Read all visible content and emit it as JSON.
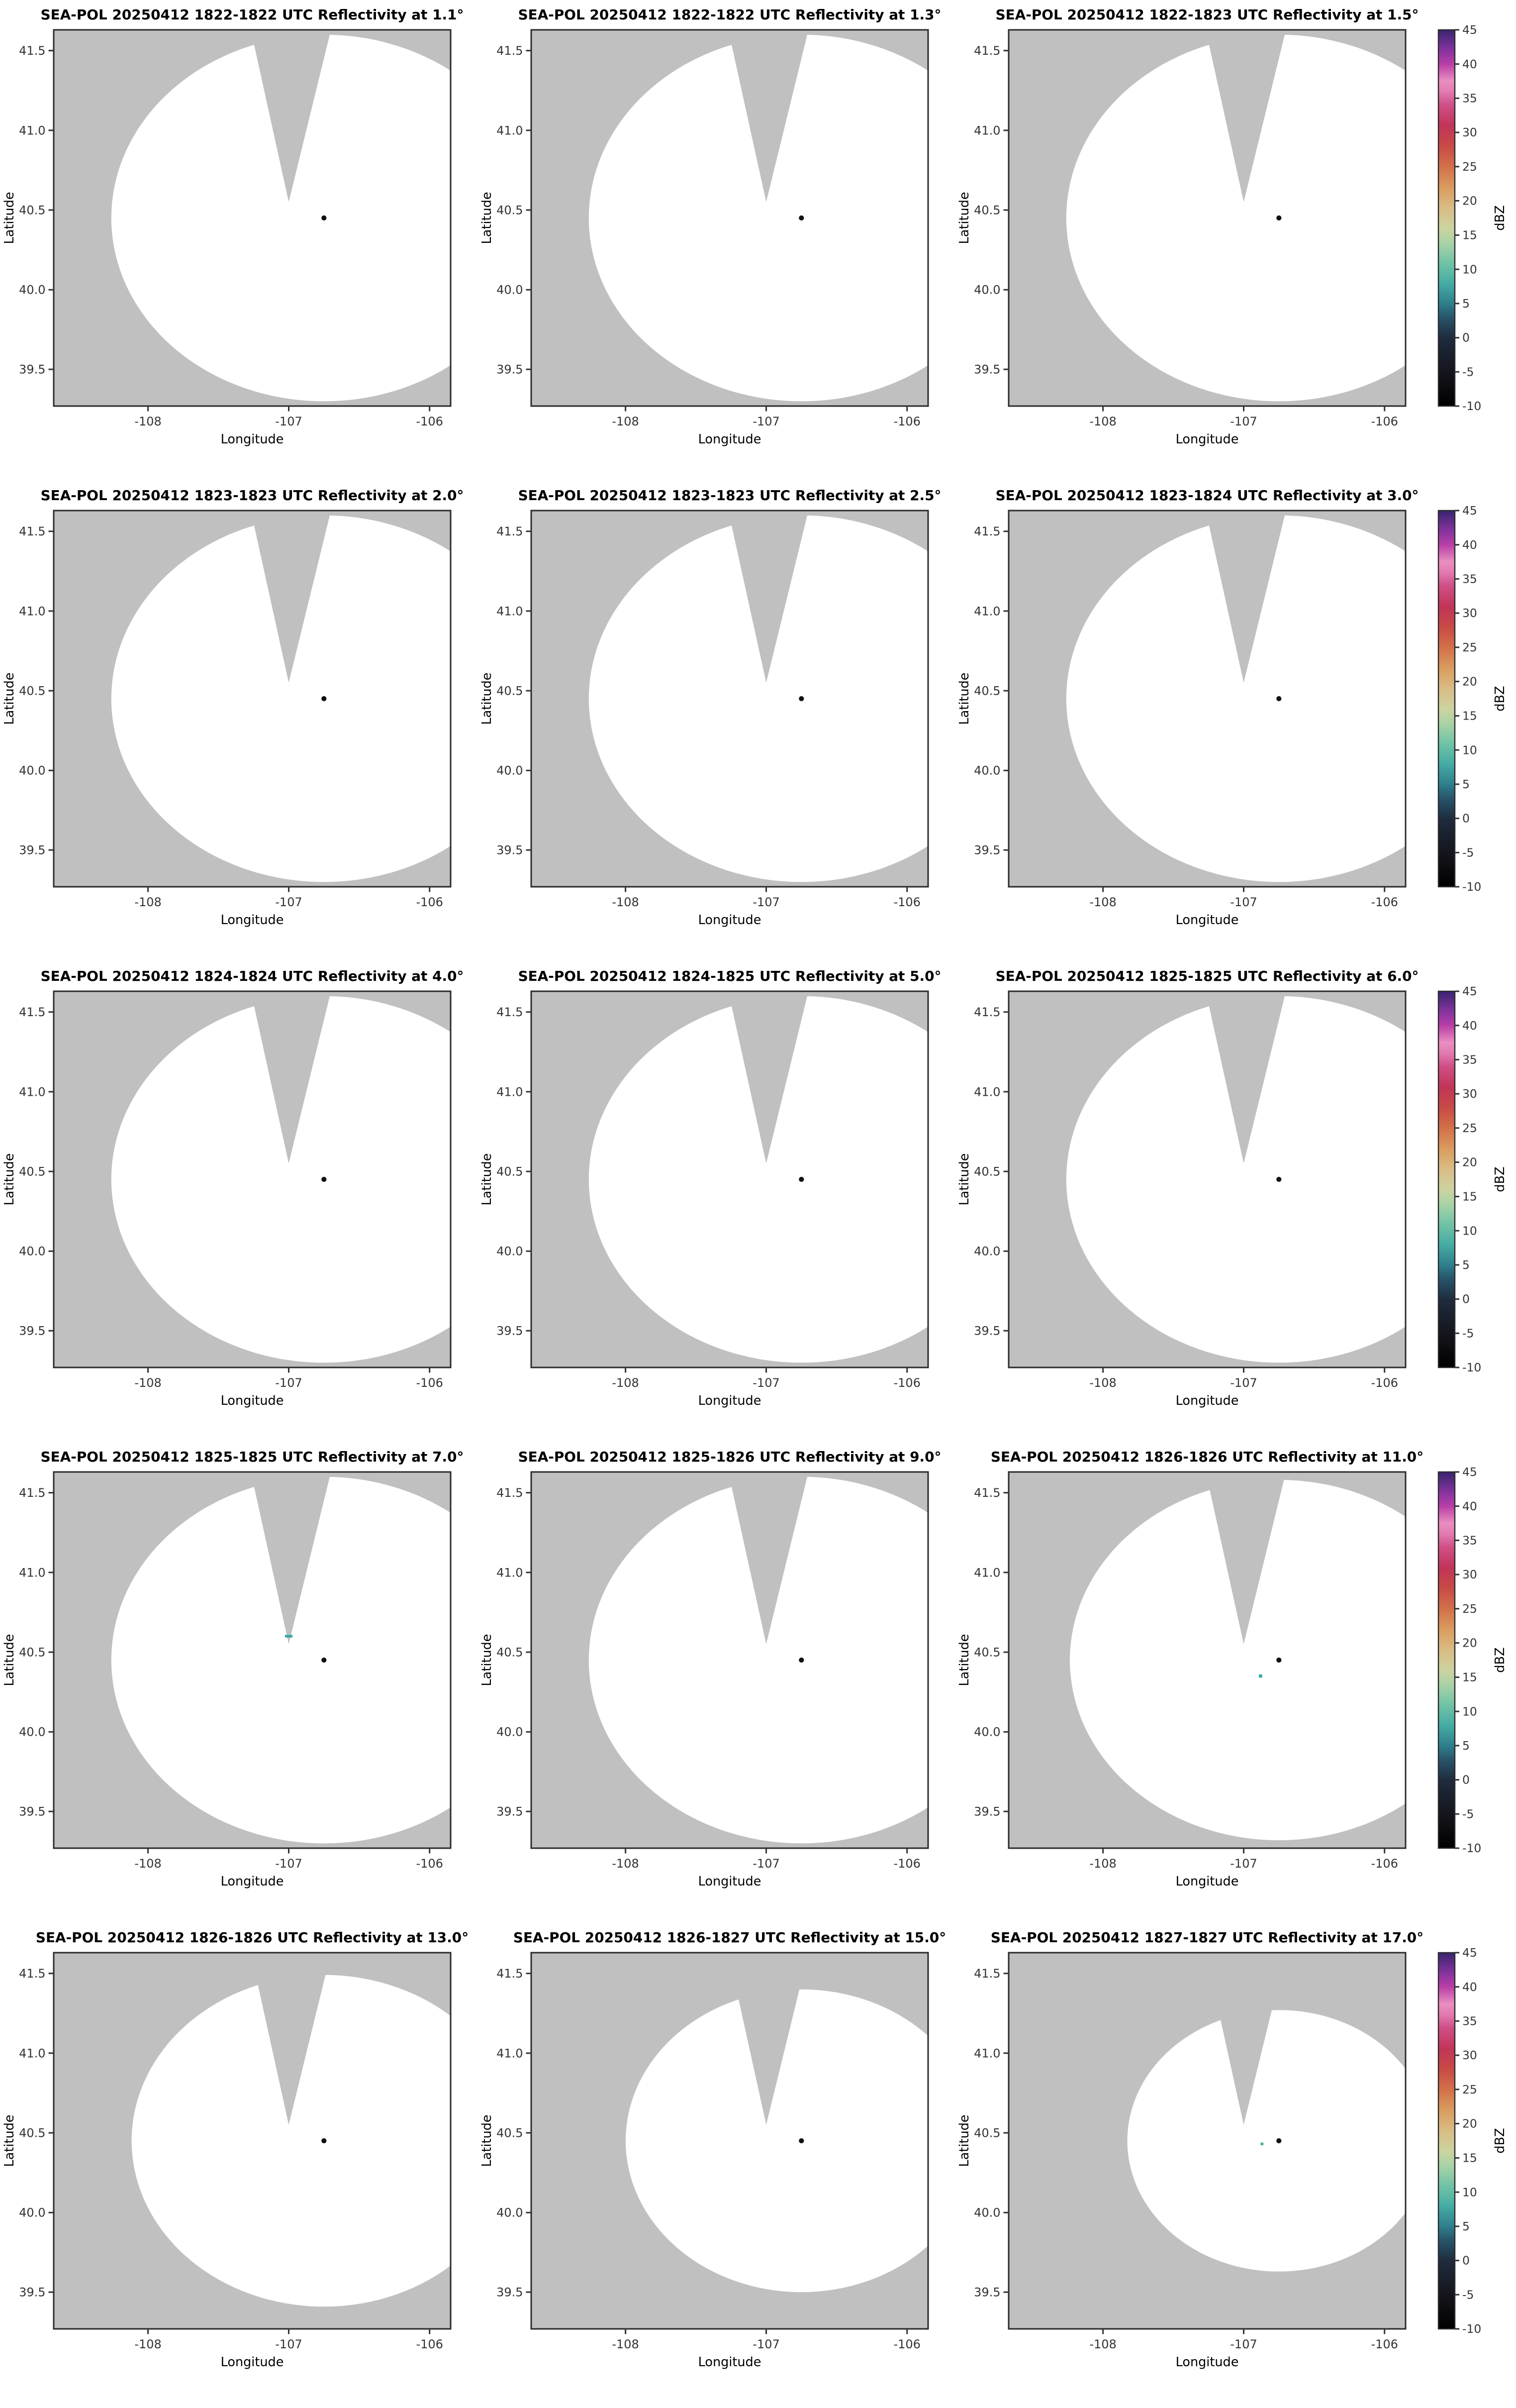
{
  "chart_data": {
    "type": "radar-ppi-grid",
    "description": "4x-downscaled multipanel radar PPI reflectivity figure, SEA-POL radar, mostly clear air (no echo) scans",
    "grid": {
      "rows": 5,
      "cols": 3
    },
    "shared": {
      "xlabel": "Longitude",
      "ylabel": "Latitude",
      "x_ticks": [
        -108,
        -107,
        -106
      ],
      "y_ticks": [
        39.5,
        40.0,
        40.5,
        41.0,
        41.5
      ],
      "xlim": [
        -108.67,
        -105.85
      ],
      "ylim": [
        39.27,
        41.63
      ],
      "radar_location": {
        "lon": -106.75,
        "lat": 40.45
      },
      "wedge": {
        "apex_lon": -107.0,
        "apex_lat": 40.55,
        "top_left_lon": -107.27,
        "top_right_lon": -106.7
      },
      "outside_color": "#c0c0c0",
      "coverage_color": "#ffffff",
      "border_color": "#2b2b2b",
      "tick_color": "#333333",
      "dot_color": "#111111"
    },
    "panels": [
      {
        "title": "SEA-POL 20250412 1822-1822 UTC Reflectivity at 1.1°",
        "elevation_deg": 1.1,
        "coverage_radius_deg": 1.15,
        "echoes": []
      },
      {
        "title": "SEA-POL 20250412 1822-1822 UTC Reflectivity at 1.3°",
        "elevation_deg": 1.3,
        "coverage_radius_deg": 1.15,
        "echoes": []
      },
      {
        "title": "SEA-POL 20250412 1822-1823 UTC Reflectivity at 1.5°",
        "elevation_deg": 1.5,
        "coverage_radius_deg": 1.15,
        "echoes": []
      },
      {
        "title": "SEA-POL 20250412 1823-1823 UTC Reflectivity at 2.0°",
        "elevation_deg": 2.0,
        "coverage_radius_deg": 1.15,
        "echoes": []
      },
      {
        "title": "SEA-POL 20250412 1823-1823 UTC Reflectivity at 2.5°",
        "elevation_deg": 2.5,
        "coverage_radius_deg": 1.15,
        "echoes": []
      },
      {
        "title": "SEA-POL 20250412 1823-1824 UTC Reflectivity at 3.0°",
        "elevation_deg": 3.0,
        "coverage_radius_deg": 1.15,
        "echoes": []
      },
      {
        "title": "SEA-POL 20250412 1824-1824 UTC Reflectivity at 4.0°",
        "elevation_deg": 4.0,
        "coverage_radius_deg": 1.15,
        "echoes": []
      },
      {
        "title": "SEA-POL 20250412 1824-1825 UTC Reflectivity at 5.0°",
        "elevation_deg": 5.0,
        "coverage_radius_deg": 1.15,
        "echoes": []
      },
      {
        "title": "SEA-POL 20250412 1825-1825 UTC Reflectivity at 6.0°",
        "elevation_deg": 6.0,
        "coverage_radius_deg": 1.15,
        "echoes": []
      },
      {
        "title": "SEA-POL 20250412 1825-1825 UTC Reflectivity at 7.0°",
        "elevation_deg": 7.0,
        "coverage_radius_deg": 1.15,
        "echoes": [
          {
            "lon": -107.0,
            "lat": 40.6,
            "color": "#3aa8a0",
            "w": 5,
            "h": 1.8
          }
        ]
      },
      {
        "title": "SEA-POL 20250412 1825-1826 UTC Reflectivity at 9.0°",
        "elevation_deg": 9.0,
        "coverage_radius_deg": 1.15,
        "echoes": []
      },
      {
        "title": "SEA-POL 20250412 1826-1826 UTC Reflectivity at 11.0°",
        "elevation_deg": 11.0,
        "coverage_radius_deg": 1.13,
        "echoes": [
          {
            "lon": -106.88,
            "lat": 40.35,
            "color": "#3aa8a0",
            "w": 2.2,
            "h": 2.2
          }
        ]
      },
      {
        "title": "SEA-POL 20250412 1826-1826 UTC Reflectivity at 13.0°",
        "elevation_deg": 13.0,
        "coverage_radius_deg": 1.04,
        "echoes": []
      },
      {
        "title": "SEA-POL 20250412 1826-1827 UTC Reflectivity at 15.0°",
        "elevation_deg": 15.0,
        "coverage_radius_deg": 0.95,
        "echoes": []
      },
      {
        "title": "SEA-POL 20250412 1827-1827 UTC Reflectivity at 17.0°",
        "elevation_deg": 17.0,
        "coverage_radius_deg": 0.82,
        "echoes": [
          {
            "lon": -106.87,
            "lat": 40.43,
            "color": "#3aa8a0",
            "w": 1.8,
            "h": 1.8
          }
        ]
      }
    ],
    "colorbar": {
      "label": "dBZ",
      "range": [
        -10,
        45
      ],
      "ticks": [
        45,
        40,
        35,
        30,
        25,
        20,
        15,
        10,
        5,
        0,
        -5,
        -10
      ],
      "stops": [
        {
          "value": -10,
          "color": "#000000"
        },
        {
          "value": -5,
          "color": "#15151d"
        },
        {
          "value": 0,
          "color": "#1f2c3e"
        },
        {
          "value": 3,
          "color": "#28556b"
        },
        {
          "value": 5,
          "color": "#2f7f8d"
        },
        {
          "value": 8,
          "color": "#46aca4"
        },
        {
          "value": 11,
          "color": "#72c3a6"
        },
        {
          "value": 14,
          "color": "#abd3a6"
        },
        {
          "value": 16,
          "color": "#cdd3a0"
        },
        {
          "value": 19,
          "color": "#d9bc84"
        },
        {
          "value": 22,
          "color": "#da9b5e"
        },
        {
          "value": 25,
          "color": "#d3704a"
        },
        {
          "value": 28,
          "color": "#c74a45"
        },
        {
          "value": 31,
          "color": "#c23458"
        },
        {
          "value": 34,
          "color": "#cf4f86"
        },
        {
          "value": 36,
          "color": "#e27bb0"
        },
        {
          "value": 37.5,
          "color": "#ea8ec1"
        },
        {
          "value": 40,
          "color": "#b93ea6"
        },
        {
          "value": 42,
          "color": "#8733a0"
        },
        {
          "value": 45,
          "color": "#38256e"
        }
      ]
    }
  }
}
